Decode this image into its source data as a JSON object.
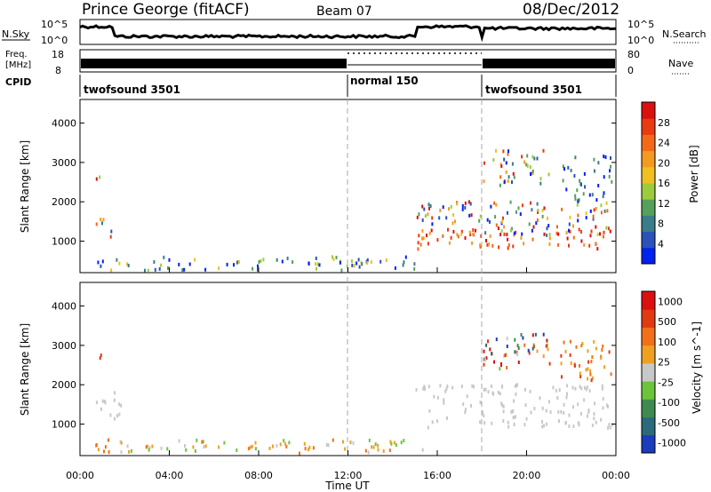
{
  "header": {
    "station": "Prince George (fitACF)",
    "beam": "Beam 07",
    "date": "08/Dec/2012"
  },
  "strip_labels": {
    "nsky": "N.Sky",
    "nsky_ticks": [
      "10^5",
      "10^0"
    ],
    "nsearch": "N.Search",
    "nsearch_ticks": [
      "10^5",
      "10^0"
    ],
    "freq": "Freq.",
    "freq_unit": "[MHz]",
    "freq_ticks": [
      "18",
      "8"
    ],
    "nave": "Nave",
    "nave_ticks": [
      "80",
      "0"
    ],
    "cpid": "CPID"
  },
  "cpid_segments": [
    {
      "label": "twofsound 3501",
      "start_hour": 0,
      "end_hour": 12
    },
    {
      "label": "normal 150",
      "start_hour": 12,
      "end_hour": 18
    },
    {
      "label": "twofsound 3501",
      "start_hour": 18,
      "end_hour": 24
    }
  ],
  "chart_data": [
    {
      "type": "heatmap",
      "name": "power",
      "ylabel": "Slant Range [km]",
      "yticks": [
        1000,
        2000,
        3000,
        4000
      ],
      "ylim": [
        200,
        4600
      ],
      "xlim": [
        0,
        24
      ],
      "colorbar": {
        "label": "Power [dB]",
        "ticks": [
          "4",
          "8",
          "12",
          "16",
          "20",
          "24",
          "28"
        ],
        "colors": [
          "#0022ee",
          "#2a52b8",
          "#3a7d8a",
          "#55a05a",
          "#9ccc3c",
          "#f0c020",
          "#f59a20",
          "#f26a18",
          "#ea3a10",
          "#dd1010"
        ]
      },
      "scatter_regions": [
        {
          "x_range": [
            0.5,
            15.5
          ],
          "y_range": [
            250,
            600
          ],
          "level": "mixed-low"
        },
        {
          "x_range": [
            0.6,
            1.6
          ],
          "y_range": [
            1100,
            1600
          ],
          "level": "mixed"
        },
        {
          "x_range": [
            0.6,
            1.0
          ],
          "y_range": [
            2500,
            2800
          ],
          "level": "mixed"
        },
        {
          "x_range": [
            15.0,
            23.8
          ],
          "y_range": [
            800,
            1300
          ],
          "level": "high"
        },
        {
          "x_range": [
            15.0,
            23.8
          ],
          "y_range": [
            1100,
            2000
          ],
          "level": "mixed"
        },
        {
          "x_range": [
            18.0,
            21.0
          ],
          "y_range": [
            2400,
            3300
          ],
          "level": "mixed"
        },
        {
          "x_range": [
            21.5,
            23.8
          ],
          "y_range": [
            2000,
            3200
          ],
          "level": "low"
        }
      ]
    },
    {
      "type": "heatmap",
      "name": "velocity",
      "ylabel": "Slant Range [km]",
      "xlabel": "Time UT",
      "xticks": [
        "00:00",
        "04:00",
        "08:00",
        "12:00",
        "16:00",
        "20:00",
        "00:00"
      ],
      "yticks": [
        1000,
        2000,
        3000,
        4000
      ],
      "ylim": [
        200,
        4600
      ],
      "xlim": [
        0,
        24
      ],
      "colorbar": {
        "label": "Velocity [m s^-1]",
        "ticks": [
          "1000",
          "500",
          "100",
          "25",
          "-25",
          "-100",
          "-500",
          "-1000"
        ],
        "colors": [
          "#1a3cbd",
          "#2a6a7a",
          "#3f8a50",
          "#6cc43a",
          "#c8c8c8",
          "#f0a020",
          "#f27018",
          "#e23a10",
          "#dd1010"
        ]
      },
      "scatter_regions": [
        {
          "x_range": [
            0.5,
            15.5
          ],
          "y_range": [
            250,
            600
          ],
          "level": "mixed-low"
        },
        {
          "x_range": [
            0.6,
            1.8
          ],
          "y_range": [
            1100,
            1800
          ],
          "level": "ground"
        },
        {
          "x_range": [
            0.6,
            1.0
          ],
          "y_range": [
            2550,
            2750
          ],
          "level": "neg"
        },
        {
          "x_range": [
            15.0,
            23.8
          ],
          "y_range": [
            900,
            2000
          ],
          "level": "ground"
        },
        {
          "x_range": [
            18.0,
            21.0
          ],
          "y_range": [
            2400,
            3300
          ],
          "level": "mixed"
        },
        {
          "x_range": [
            21.5,
            23.8
          ],
          "y_range": [
            2100,
            3100
          ],
          "level": "neg"
        }
      ]
    }
  ]
}
